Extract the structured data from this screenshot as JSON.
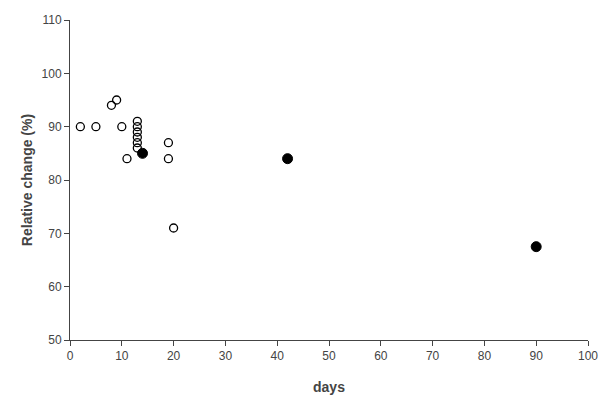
{
  "chart_data": {
    "type": "scatter",
    "xlabel": "days",
    "ylabel": "Relative change (%)",
    "series": [
      {
        "x": [
          2,
          5,
          8,
          9,
          10,
          11,
          13,
          13,
          13,
          13,
          13,
          13,
          19,
          19,
          20
        ],
        "values": [
          90,
          90,
          94,
          95,
          90,
          84,
          91,
          90,
          89,
          88,
          87,
          86,
          87,
          84,
          71
        ],
        "color": "black",
        "marker": "open"
      },
      {
        "x": [
          14,
          42,
          90
        ],
        "values": [
          85,
          84,
          67.5
        ],
        "color": "black",
        "marker": "filled"
      }
    ],
    "xlim": [
      0,
      100
    ],
    "ylim": [
      50,
      110
    ],
    "xticks": [
      0,
      10,
      20,
      30,
      40,
      50,
      60,
      70,
      80,
      90,
      100
    ],
    "yticks": [
      50,
      60,
      70,
      80,
      90,
      100,
      110
    ],
    "grid": false
  }
}
